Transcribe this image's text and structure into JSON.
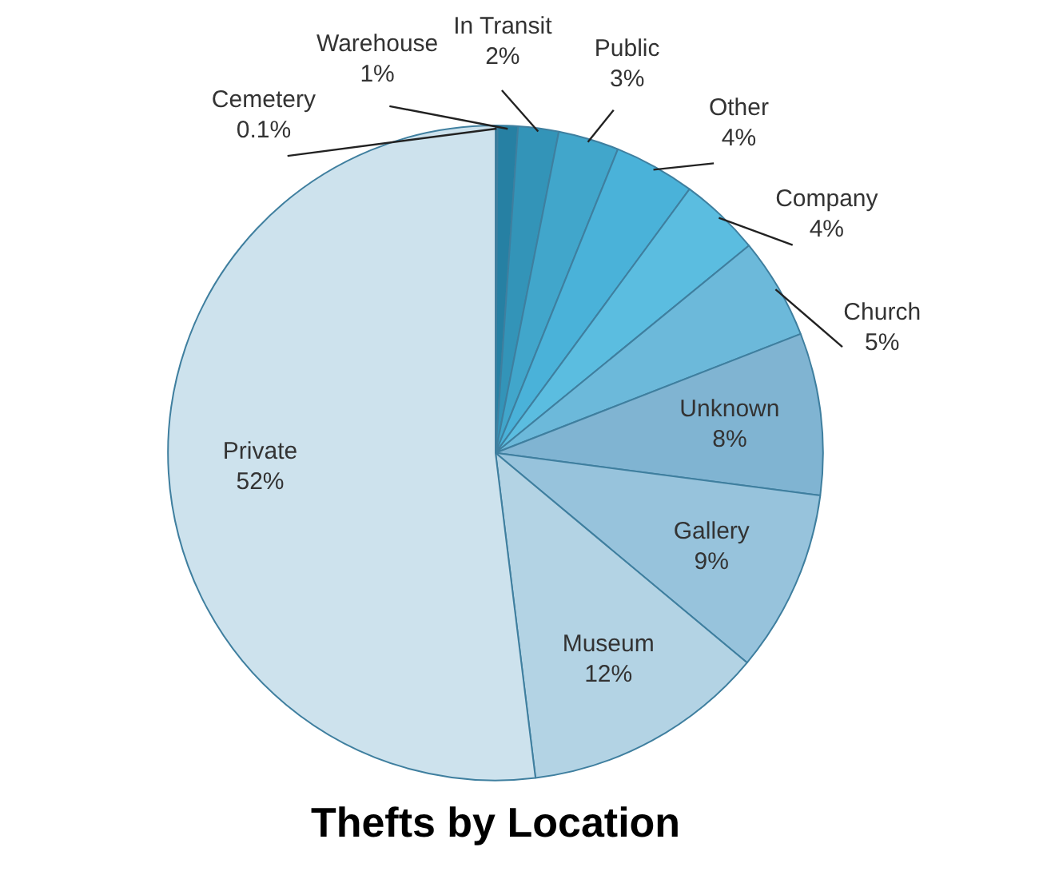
{
  "chart_data": {
    "type": "pie",
    "title": "Thefts by Location",
    "categories": [
      "Cemetery",
      "Warehouse",
      "In Transit",
      "Public",
      "Other",
      "Company",
      "Church",
      "Unknown",
      "Gallery",
      "Museum",
      "Private"
    ],
    "values": [
      0.1,
      1,
      2,
      3,
      4,
      4,
      5,
      8,
      9,
      12,
      52
    ],
    "value_labels": [
      "0.1%",
      "1%",
      "2%",
      "3%",
      "4%",
      "4%",
      "5%",
      "8%",
      "9%",
      "12%",
      "52%"
    ],
    "colors": [
      "#1d6a88",
      "#2680a3",
      "#3394b8",
      "#41a6cb",
      "#4ab2d9",
      "#5bbde0",
      "#6cb9da",
      "#80b4d2",
      "#97c3dc",
      "#b3d3e4",
      "#cde2ed"
    ],
    "legend": false
  }
}
